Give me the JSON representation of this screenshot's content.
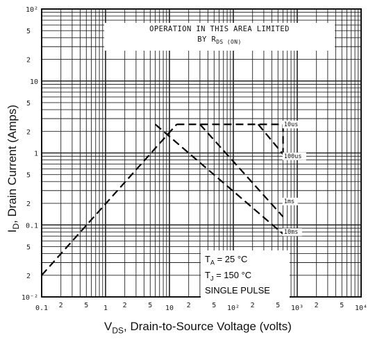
{
  "chart_data": {
    "type": "line",
    "title": "",
    "xlabel": {
      "main": "V",
      "sub": "DS",
      "rest": ", Drain-to-Source Voltage (volts)"
    },
    "ylabel": {
      "main": "I",
      "sub": "D",
      "rest": ", Drain Current (Amps)"
    },
    "x_scale": "log",
    "y_scale": "log",
    "xlim": [
      0.1,
      10000
    ],
    "ylim": [
      0.01,
      100
    ],
    "grid": true,
    "x_major_ticks": [
      {
        "value": 0.1,
        "label": "0.1"
      },
      {
        "value": 1,
        "label": "1"
      },
      {
        "value": 10,
        "label": "10"
      },
      {
        "value": 100,
        "label": "10²"
      },
      {
        "value": 1000,
        "label": "10³"
      },
      {
        "value": 10000,
        "label": "10⁴"
      }
    ],
    "x_minor_labels": [
      {
        "value": 0.2,
        "label": "2"
      },
      {
        "value": 0.5,
        "label": "5"
      },
      {
        "value": 2,
        "label": "2"
      },
      {
        "value": 5,
        "label": "5"
      },
      {
        "value": 20,
        "label": "2"
      },
      {
        "value": 50,
        "label": "5"
      },
      {
        "value": 200,
        "label": "2"
      },
      {
        "value": 500,
        "label": "5"
      },
      {
        "value": 2000,
        "label": "2"
      },
      {
        "value": 5000,
        "label": "5"
      }
    ],
    "y_major_ticks": [
      {
        "value": 100,
        "label": "10²"
      },
      {
        "value": 10,
        "label": "10"
      },
      {
        "value": 1,
        "label": "1"
      },
      {
        "value": 0.1,
        "label": "0.1"
      },
      {
        "value": 0.01,
        "label": "10⁻²"
      }
    ],
    "y_minor_labels": [
      {
        "value": 50,
        "label": "5"
      },
      {
        "value": 20,
        "label": "2"
      },
      {
        "value": 5,
        "label": "5"
      },
      {
        "value": 2,
        "label": "2"
      },
      {
        "value": 0.5,
        "label": "5"
      },
      {
        "value": 0.2,
        "label": "2"
      },
      {
        "value": 0.05,
        "label": "5"
      },
      {
        "value": 0.02,
        "label": "2"
      }
    ],
    "rds_on_limit": {
      "x": [
        0.1,
        13
      ],
      "y": [
        0.02,
        2.5
      ]
    },
    "current_limit": {
      "x": [
        13,
        600
      ],
      "y": [
        2.5,
        2.5
      ]
    },
    "series": [
      {
        "name": "10us",
        "x": [
          600,
          600
        ],
        "y": [
          2.5,
          0.96
        ]
      },
      {
        "name": "100us",
        "x": [
          245,
          600
        ],
        "y": [
          2.5,
          0.96
        ]
      },
      {
        "name": "1ms",
        "x": [
          30,
          600
        ],
        "y": [
          2.5,
          0.13
        ]
      },
      {
        "name": "10ms",
        "x": [
          6,
          600
        ],
        "y": [
          2.5,
          0.075
        ]
      }
    ],
    "curve_labels": [
      {
        "text": "10us",
        "x": 620,
        "y": 2.35
      },
      {
        "text": "100us",
        "x": 620,
        "y": 0.85
      },
      {
        "text": "1ms",
        "x": 620,
        "y": 0.2
      },
      {
        "text": "10ms",
        "x": 620,
        "y": 0.075
      }
    ],
    "annotation": {
      "line1": "OPERATION IN THIS AREA LIMITED",
      "line2_pre": "BY R",
      "line2_sub": "DS (ON)"
    },
    "conditions": {
      "ta_main": "T",
      "ta_sub": "A",
      "ta_rest": " = 25 °C",
      "tj_main": "T",
      "tj_sub": "J",
      "tj_rest": " = 150 °C",
      "pulse": "SINGLE PULSE"
    }
  }
}
